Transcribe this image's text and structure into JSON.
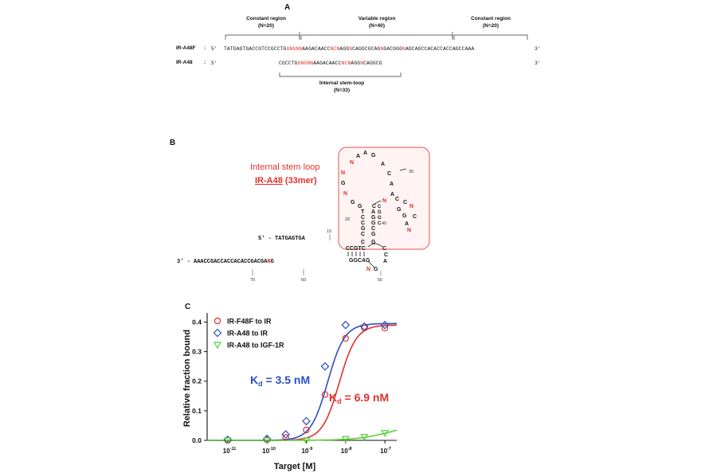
{
  "panel_a": {
    "letter": "A",
    "regions": [
      {
        "title": "Constant region",
        "count": "(N=20)"
      },
      {
        "title": "Variable region",
        "count": "(N=40)"
      },
      {
        "title": "Constant region",
        "count": "(N=20)"
      }
    ],
    "rows": [
      {
        "label": "IR-A48F",
        "sep": ":",
        "prime5": "5'",
        "prime3": "3'",
        "segments": [
          {
            "text": "TATGAGTGACCGTCCGCCTG",
            "red": false
          },
          {
            "text": "GNGNN",
            "red": true
          },
          {
            "text": "AAGACAACC",
            "red": false
          },
          {
            "text": "NCN",
            "red": true
          },
          {
            "text": "AGG",
            "red": false
          },
          {
            "text": "N",
            "red": true
          },
          {
            "text": "CAGGCGCAG",
            "red": false
          },
          {
            "text": "N",
            "red": true
          },
          {
            "text": "GACGGG",
            "red": false
          },
          {
            "text": "N",
            "red": true
          },
          {
            "text": "AGCAGCCACACCACCAGCCAAA",
            "red": false
          }
        ]
      },
      {
        "label": "IR-A48",
        "sep": ":",
        "prime5": "5'",
        "prime3": "3'",
        "segments": [
          {
            "text": "CGCCTG",
            "red": false
          },
          {
            "text": "GNGNN",
            "red": true
          },
          {
            "text": "AAGACAACC",
            "red": false
          },
          {
            "text": "NCN",
            "red": true
          },
          {
            "text": "AGG",
            "red": false
          },
          {
            "text": "N",
            "red": true
          },
          {
            "text": "CAGGCG",
            "red": false
          }
        ]
      }
    ],
    "stem_loop": {
      "title": "Internal stem-loop",
      "count": "(N=33)"
    }
  },
  "panel_b": {
    "letter": "B",
    "callout_title": "Internal stem loop",
    "callout_name": "IR-A48",
    "callout_suffix": " (33mer)",
    "strand_5": "5' - TATGAGTGA",
    "strand_3_prefix": "3' - AAACCGACCACCACACCGACGA",
    "strand_3_red": "N",
    "strand_3_suffix": "G",
    "position_labels": [
      "10",
      "20",
      "30",
      "40",
      "50",
      "60",
      "70"
    ],
    "colors": {
      "box": "#e8736b",
      "box_fill": "#fff4f3",
      "red": "#e0312b"
    }
  },
  "panel_c": {
    "letter": "C",
    "annotations": [
      {
        "text_main": "K",
        "text_sub": "d",
        "text_rest": " = 3.5 nM",
        "color": "#2b4fc4"
      },
      {
        "text_main": "K",
        "text_sub": "d",
        "text_rest": " = 6.9 nM",
        "color": "#e0312b"
      }
    ]
  },
  "chart_data": {
    "type": "scatter",
    "title": "",
    "xlabel": "Target  [M]",
    "ylabel": "Relative fraction bound",
    "x_scale": "log",
    "xlim": [
      3e-12,
      2e-07
    ],
    "ylim": [
      0,
      0.42
    ],
    "x_ticks": [
      {
        "value": 1e-11,
        "base": "10",
        "exp": "-11"
      },
      {
        "value": 1e-10,
        "base": "10",
        "exp": "-10"
      },
      {
        "value": 1e-09,
        "base": "10",
        "exp": "-9"
      },
      {
        "value": 1e-08,
        "base": "10",
        "exp": "-8"
      },
      {
        "value": 1e-07,
        "base": "10",
        "exp": "-7"
      }
    ],
    "y_ticks": [
      "0.0",
      "0.1",
      "0.2",
      "0.3",
      "0.4"
    ],
    "series": [
      {
        "name": "IR-F48F to IR",
        "marker": "circle",
        "color": "#e0312b",
        "x": [
          1e-11,
          1e-10,
          3e-10,
          1e-09,
          3e-09,
          1e-08,
          3e-08,
          1e-07
        ],
        "y": [
          0.0,
          0.002,
          0.01,
          0.035,
          0.155,
          0.345,
          0.38,
          0.38
        ],
        "fit": {
          "top": 0.39,
          "kd": 6.9e-09,
          "hill": 2.0
        }
      },
      {
        "name": "IR-A48 to IR",
        "marker": "diamond",
        "color": "#2b4fc4",
        "x": [
          1e-11,
          1e-10,
          3e-10,
          1e-09,
          3e-09,
          1e-08,
          3e-08,
          1e-07
        ],
        "y": [
          0.002,
          0.005,
          0.02,
          0.065,
          0.25,
          0.39,
          0.385,
          0.39
        ],
        "fit": {
          "top": 0.395,
          "kd": 3.5e-09,
          "hill": 2.0
        }
      },
      {
        "name": "IR-A48 to IGF-1R",
        "marker": "triangle-down",
        "color": "#5cd03a",
        "x": [
          1e-11,
          1e-10,
          1e-09,
          1e-08,
          3e-08,
          1e-07
        ],
        "y": [
          0.0,
          0.0,
          0.0,
          0.005,
          0.012,
          0.025
        ],
        "fit": {
          "top": 0.06,
          "kd": 1.5e-07,
          "hill": 1.0
        }
      }
    ],
    "grid": false,
    "legend": "top-left"
  }
}
